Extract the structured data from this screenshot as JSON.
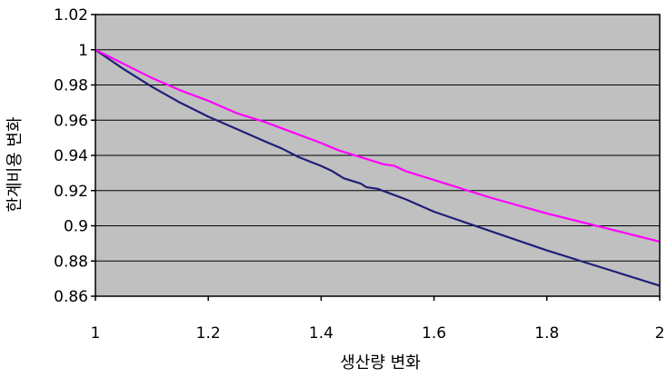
{
  "chart_data": {
    "type": "line",
    "xlabel": "생산량 변화",
    "ylabel": "한계비용 변화",
    "xlim": [
      1,
      2
    ],
    "ylim": [
      0.86,
      1.02
    ],
    "x_ticks": [
      "1",
      "1.2",
      "1.4",
      "1.6",
      "1.8",
      "2"
    ],
    "y_ticks": [
      "1.02",
      "1",
      "0.98",
      "0.96",
      "0.94",
      "0.92",
      "0.9",
      "0.88",
      "0.86"
    ],
    "grid": "horizontal",
    "background": "#c0c0c0",
    "series": [
      {
        "color": "#1f1f78",
        "x": [
          1.0,
          1.05,
          1.1,
          1.15,
          1.2,
          1.25,
          1.3,
          1.33,
          1.36,
          1.4,
          1.42,
          1.44,
          1.46,
          1.47,
          1.48,
          1.5,
          1.55,
          1.6,
          1.7,
          1.8,
          1.9,
          2.0
        ],
        "y": [
          1.0,
          0.989,
          0.979,
          0.97,
          0.962,
          0.955,
          0.948,
          0.944,
          0.939,
          0.934,
          0.931,
          0.927,
          0.925,
          0.924,
          0.922,
          0.921,
          0.915,
          0.908,
          0.897,
          0.886,
          0.876,
          0.866
        ]
      },
      {
        "color": "#ff00ff",
        "x": [
          1.0,
          1.05,
          1.1,
          1.15,
          1.2,
          1.25,
          1.3,
          1.35,
          1.4,
          1.43,
          1.45,
          1.47,
          1.49,
          1.51,
          1.53,
          1.55,
          1.6,
          1.7,
          1.8,
          1.9,
          2.0
        ],
        "y": [
          1.0,
          0.992,
          0.984,
          0.977,
          0.971,
          0.964,
          0.959,
          0.953,
          0.947,
          0.943,
          0.941,
          0.939,
          0.937,
          0.935,
          0.934,
          0.931,
          0.926,
          0.916,
          0.907,
          0.899,
          0.891
        ]
      }
    ]
  }
}
